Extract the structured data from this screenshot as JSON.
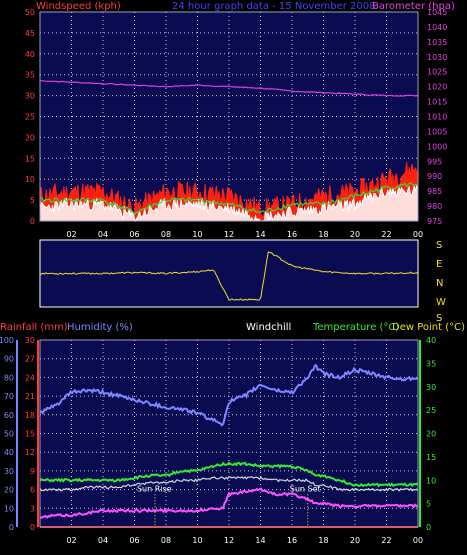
{
  "colors": {
    "background": "#000000",
    "panel": "#0b0b52",
    "grid_dots": "#cfcfcf",
    "axis_red": "#ff3b3b",
    "baro": "#e040e0",
    "wind_dir": "#f0e030",
    "humidity": "#7f86ff",
    "temperature": "#34e834",
    "dewpoint": "#cfd8d8",
    "rainfall": "#ff2020",
    "windchill": "#ff50ff",
    "gust": "#ff2010",
    "avg": "#ffffff",
    "wind_temp": "#38d838",
    "white_text": "#ffffff"
  },
  "header": {
    "left": "Windspeed (kph)",
    "center": "24 hour graph data - 15 November 2008",
    "right": "Barometer (hpa)"
  },
  "wind_dir_labels": [
    "S",
    "E",
    "N",
    "W",
    "S"
  ],
  "lower_header": {
    "rainfall": "Rainfall (mm)",
    "humidity": "Humidity (%)",
    "windchill": "Windchill",
    "temperature": "Temperature (°C)",
    "dewpoint": "Dew Point (°C)"
  },
  "annotations": {
    "sunrise": "Sun Rise",
    "sunset": "Sun Set"
  },
  "chart_data": [
    {
      "type": "line",
      "panel": "wind-barometer",
      "x_ticks": [
        "02",
        "04",
        "06",
        "08",
        "10",
        "12",
        "14",
        "16",
        "18",
        "20",
        "22",
        "00"
      ],
      "y_left": {
        "ticks": [
          0,
          5,
          10,
          15,
          20,
          25,
          30,
          35,
          40,
          45,
          50
        ],
        "ylim": [
          0,
          50
        ]
      },
      "y_right": {
        "ticks": [
          975,
          980,
          985,
          990,
          995,
          1000,
          1005,
          1010,
          1015,
          1020,
          1025,
          1030,
          1035,
          1040,
          1045
        ],
        "ylim": [
          975,
          1045
        ]
      },
      "x": [
        0,
        2,
        4,
        6,
        8,
        10,
        12,
        14,
        16,
        18,
        20,
        22,
        24
      ],
      "series": [
        {
          "key": "gust",
          "axis": "left",
          "values": [
            6,
            7,
            7,
            3,
            7,
            7,
            6,
            3,
            4,
            6,
            7,
            10,
            13
          ]
        },
        {
          "key": "avg",
          "axis": "left",
          "values": [
            3,
            4,
            4,
            1,
            4,
            4,
            3,
            1,
            2,
            3,
            4,
            7,
            7
          ]
        },
        {
          "key": "temp_line",
          "axis": "left",
          "values": [
            5,
            5,
            5,
            2,
            5,
            5,
            4,
            2,
            4,
            4,
            6,
            8,
            9
          ]
        },
        {
          "key": "baro",
          "axis": "right",
          "values": [
            1022,
            1021.5,
            1021,
            1020.5,
            1020,
            1020.5,
            1020,
            1019.5,
            1018.5,
            1018,
            1017.5,
            1017,
            1017
          ]
        }
      ]
    },
    {
      "type": "line",
      "panel": "wind-direction",
      "x": [
        0,
        2,
        4,
        6,
        8,
        10,
        11,
        12,
        13,
        14,
        14.5,
        16,
        18,
        20,
        22,
        24
      ],
      "values": [
        180,
        180,
        180,
        185,
        180,
        190,
        200,
        40,
        40,
        40,
        300,
        220,
        190,
        180,
        180,
        185
      ],
      "ylim": [
        0,
        360
      ]
    },
    {
      "type": "line",
      "panel": "humidity-temperature",
      "x_ticks": [
        "02",
        "04",
        "06",
        "08",
        "10",
        "12",
        "14",
        "16",
        "18",
        "20",
        "22",
        "00"
      ],
      "y_humidity": {
        "ticks": [
          0,
          10,
          20,
          30,
          40,
          50,
          60,
          70,
          80,
          90,
          100
        ],
        "ylim": [
          0,
          100
        ]
      },
      "y_rain": {
        "ticks": [
          0,
          3,
          6,
          9,
          12,
          15,
          18,
          21,
          24,
          27,
          30
        ],
        "ylim": [
          0,
          30
        ]
      },
      "y_temp": {
        "ticks": [
          0,
          5,
          10,
          15,
          20,
          25,
          30,
          35,
          40
        ],
        "ylim": [
          0,
          40
        ]
      },
      "x": [
        0,
        1,
        2,
        3,
        4,
        5,
        6,
        7,
        8,
        9,
        10,
        11,
        11.6,
        12,
        13,
        14,
        15,
        16,
        17,
        17.5,
        18,
        19,
        20,
        21,
        22,
        23,
        24
      ],
      "series": [
        {
          "key": "humidity",
          "axis": "humidity",
          "values": [
            61,
            65,
            72,
            73,
            72,
            70,
            68,
            66,
            64,
            63,
            61,
            57,
            55,
            67,
            70,
            76,
            73,
            72,
            80,
            86,
            82,
            80,
            84,
            82,
            80,
            79,
            80
          ]
        },
        {
          "key": "temperature",
          "axis": "temp",
          "values": [
            10,
            10,
            10,
            10,
            10,
            10,
            10.5,
            11,
            11,
            12,
            12,
            13,
            13.5,
            13.5,
            13.5,
            13,
            13,
            13,
            12,
            11,
            11,
            10,
            9,
            9,
            9,
            9,
            9
          ]
        },
        {
          "key": "dewpoint",
          "axis": "temp",
          "values": [
            8,
            8,
            8,
            8.5,
            8.5,
            8.5,
            9,
            9.5,
            9.5,
            10,
            10,
            10.5,
            10.5,
            10.5,
            10.5,
            10.5,
            10,
            10,
            10,
            9,
            9,
            8,
            8,
            8,
            8,
            8,
            8
          ]
        },
        {
          "key": "windchill",
          "axis": "temp",
          "values": [
            2,
            2.5,
            2.5,
            3,
            3.5,
            3.5,
            3.5,
            3.5,
            3.5,
            3.5,
            3.5,
            4,
            4,
            7,
            7.5,
            8,
            7,
            7,
            6,
            5,
            5,
            4.5,
            4.5,
            4.5,
            4.5,
            4.5,
            4.5
          ]
        },
        {
          "key": "rainfall",
          "axis": "rain",
          "values": [
            0,
            0,
            0,
            0,
            0,
            0,
            0,
            0,
            0,
            0,
            0,
            0,
            0,
            0,
            0,
            0,
            0,
            0,
            0,
            0,
            0,
            0,
            0,
            0,
            0,
            0,
            0
          ]
        }
      ],
      "sunrise_x": 7.3,
      "sunset_x": 17.0
    }
  ]
}
